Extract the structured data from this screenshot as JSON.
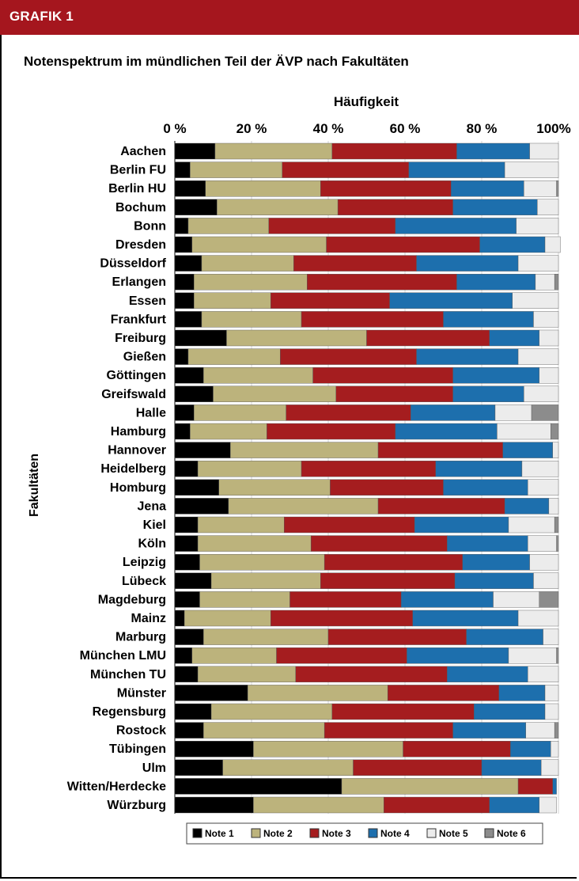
{
  "header": {
    "label": "GRAFIK 1"
  },
  "title": "Notenspektrum im mündlichen Teil der ÄVP nach Fakultäten",
  "chart_data": {
    "type": "bar",
    "orientation": "horizontal",
    "stacked": true,
    "xlabel": "Häufigkeit",
    "ylabel": "Fakultäten",
    "x_ticks": [
      "0 %",
      "20 %",
      "40 %",
      "60 %",
      "80 %",
      "100%"
    ],
    "xlim": [
      0,
      100
    ],
    "grid": true,
    "legend_position": "bottom",
    "categories": [
      "Aachen",
      "Berlin FU",
      "Berlin HU",
      "Bochum",
      "Bonn",
      "Dresden",
      "Düsseldorf",
      "Erlangen",
      "Essen",
      "Frankfurt",
      "Freiburg",
      "Gießen",
      "Göttingen",
      "Greifswald",
      "Halle",
      "Hamburg",
      "Hannover",
      "Heidelberg",
      "Homburg",
      "Jena",
      "Kiel",
      "Köln",
      "Leipzig",
      "Lübeck",
      "Magdeburg",
      "Mainz",
      "Marburg",
      "München LMU",
      "München TU",
      "Münster",
      "Regensburg",
      "Rostock",
      "Tübingen",
      "Ulm",
      "Witten/Herdecke",
      "Würzburg"
    ],
    "series": [
      {
        "name": "Note 1",
        "color": "#000000",
        "values": [
          10.5,
          4,
          8,
          11,
          3.5,
          4.5,
          7,
          5,
          5,
          7,
          13.5,
          3.5,
          7.5,
          10,
          5,
          4,
          14.5,
          6,
          11.5,
          14,
          6,
          6,
          6.5,
          9.5,
          6.5,
          2.5,
          7.5,
          4.5,
          6,
          19,
          9.5,
          7.5,
          20.5,
          12.5,
          43.5,
          20.5
        ]
      },
      {
        "name": "Note 2",
        "color": "#bcb37c",
        "values": [
          30.5,
          24,
          30,
          31.5,
          21,
          35,
          24,
          29.5,
          20,
          26,
          36.5,
          24,
          28.5,
          32,
          24,
          20,
          38.5,
          27,
          29,
          39,
          22.5,
          29.5,
          32.5,
          28.5,
          23.5,
          22.5,
          32.5,
          22,
          25.5,
          36.5,
          31.5,
          31.5,
          39,
          34,
          46,
          34
        ]
      },
      {
        "name": "Note 3",
        "color": "#a51d1f",
        "values": [
          32.5,
          33,
          34,
          30,
          33,
          40,
          32,
          39,
          31,
          37,
          32,
          35.5,
          36.5,
          30.5,
          32.5,
          33.5,
          32.5,
          35,
          29.5,
          33,
          34,
          35.5,
          36,
          35,
          29,
          37,
          36,
          34,
          39.5,
          29,
          37,
          33.5,
          28,
          33.5,
          9,
          27.5
        ]
      },
      {
        "name": "Note 4",
        "color": "#1d6fad",
        "values": [
          19,
          25,
          19,
          22,
          31.5,
          17,
          26.5,
          20.5,
          32,
          23.5,
          13,
          26.5,
          22.5,
          18.5,
          22,
          26.5,
          13,
          22.5,
          22,
          11.5,
          24.5,
          21,
          17.5,
          20.5,
          24,
          27.5,
          20,
          26.5,
          21,
          12,
          18.5,
          19,
          10.5,
          15.5,
          1,
          13
        ]
      },
      {
        "name": "Note 5",
        "color": "#ececec",
        "values": [
          7.5,
          14,
          8.5,
          5.5,
          11,
          4,
          10.5,
          5,
          12,
          6.5,
          5,
          10.5,
          5,
          9,
          9.5,
          14,
          1.5,
          9.5,
          8,
          2.5,
          12,
          7.5,
          7.5,
          6.5,
          12,
          10.5,
          4,
          12.5,
          8,
          3.5,
          3.5,
          7.5,
          2,
          4.5,
          0,
          4.5
        ]
      },
      {
        "name": "Note 6",
        "color": "#8c8c8c",
        "values": [
          0,
          0,
          0.5,
          0,
          0,
          0,
          0,
          1,
          0,
          0,
          0,
          0,
          0,
          0,
          7,
          2,
          0,
          0,
          0,
          0,
          1,
          0.5,
          0,
          0,
          5,
          0,
          0,
          0.5,
          0,
          0,
          0,
          1,
          0,
          0,
          0,
          0
        ]
      }
    ]
  }
}
